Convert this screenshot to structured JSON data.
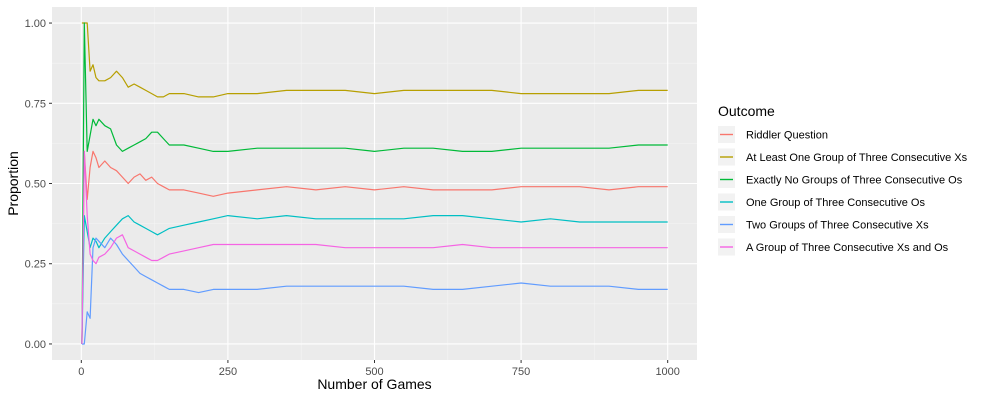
{
  "chart_data": {
    "type": "line",
    "xlabel": "Number of Games",
    "ylabel": "Proportion",
    "xlim": [
      0,
      1000
    ],
    "ylim": [
      0,
      1
    ],
    "xticks": [
      0,
      250,
      500,
      750,
      1000
    ],
    "xtick_labels": [
      "0",
      "250",
      "500",
      "750",
      "1000"
    ],
    "yticks": [
      0,
      0.25,
      0.5,
      0.75,
      1
    ],
    "ytick_labels": [
      "0.00",
      "0.25",
      "0.50",
      "0.75",
      "1.00"
    ],
    "grid": true,
    "legend_title": "Outcome",
    "legend_position": "right",
    "series": [
      {
        "name": "Riddler Question",
        "color": "#F8766D",
        "x": [
          1,
          5,
          10,
          15,
          20,
          25,
          30,
          40,
          50,
          60,
          70,
          80,
          90,
          100,
          110,
          120,
          130,
          140,
          150,
          175,
          200,
          225,
          250,
          300,
          350,
          400,
          450,
          500,
          550,
          600,
          650,
          700,
          750,
          800,
          850,
          900,
          950,
          1000
        ],
        "y": [
          0.0,
          0.6,
          0.45,
          0.55,
          0.6,
          0.58,
          0.55,
          0.57,
          0.55,
          0.54,
          0.52,
          0.5,
          0.52,
          0.53,
          0.51,
          0.52,
          0.5,
          0.49,
          0.48,
          0.48,
          0.47,
          0.46,
          0.47,
          0.48,
          0.49,
          0.48,
          0.49,
          0.48,
          0.49,
          0.48,
          0.48,
          0.48,
          0.49,
          0.49,
          0.49,
          0.48,
          0.49,
          0.49
        ]
      },
      {
        "name": "At Least One Group of Three Consecutive Xs",
        "color": "#B79F00",
        "x": [
          1,
          5,
          10,
          15,
          20,
          25,
          30,
          40,
          50,
          60,
          70,
          80,
          90,
          100,
          110,
          120,
          130,
          140,
          150,
          175,
          200,
          225,
          250,
          300,
          350,
          400,
          450,
          500,
          550,
          600,
          650,
          700,
          750,
          800,
          850,
          900,
          950,
          1000
        ],
        "y": [
          1.0,
          1.0,
          1.0,
          0.85,
          0.87,
          0.83,
          0.82,
          0.82,
          0.83,
          0.85,
          0.83,
          0.8,
          0.81,
          0.8,
          0.79,
          0.78,
          0.77,
          0.77,
          0.78,
          0.78,
          0.77,
          0.77,
          0.78,
          0.78,
          0.79,
          0.79,
          0.79,
          0.78,
          0.79,
          0.79,
          0.79,
          0.79,
          0.78,
          0.78,
          0.78,
          0.78,
          0.79,
          0.79
        ]
      },
      {
        "name": "Exactly No Groups of Three Consecutive Os",
        "color": "#00BA38",
        "x": [
          1,
          5,
          10,
          15,
          20,
          25,
          30,
          40,
          50,
          60,
          70,
          80,
          90,
          100,
          110,
          120,
          130,
          140,
          150,
          175,
          200,
          225,
          250,
          300,
          350,
          400,
          450,
          500,
          550,
          600,
          650,
          700,
          750,
          800,
          850,
          900,
          950,
          1000
        ],
        "y": [
          0.0,
          1.0,
          0.6,
          0.65,
          0.7,
          0.68,
          0.7,
          0.68,
          0.67,
          0.62,
          0.6,
          0.61,
          0.62,
          0.63,
          0.64,
          0.66,
          0.66,
          0.64,
          0.62,
          0.62,
          0.61,
          0.6,
          0.6,
          0.61,
          0.61,
          0.61,
          0.61,
          0.6,
          0.61,
          0.61,
          0.6,
          0.6,
          0.61,
          0.61,
          0.61,
          0.61,
          0.62,
          0.62
        ]
      },
      {
        "name": "One Group of Three Consecutive Os",
        "color": "#00BFC4",
        "x": [
          1,
          5,
          10,
          15,
          20,
          25,
          30,
          40,
          50,
          60,
          70,
          80,
          90,
          100,
          110,
          120,
          130,
          140,
          150,
          175,
          200,
          225,
          250,
          300,
          350,
          400,
          450,
          500,
          550,
          600,
          650,
          700,
          750,
          800,
          850,
          900,
          950,
          1000
        ],
        "y": [
          0.0,
          0.4,
          0.35,
          0.3,
          0.33,
          0.32,
          0.3,
          0.33,
          0.35,
          0.37,
          0.39,
          0.4,
          0.38,
          0.37,
          0.36,
          0.35,
          0.34,
          0.35,
          0.36,
          0.37,
          0.38,
          0.39,
          0.4,
          0.39,
          0.4,
          0.39,
          0.39,
          0.39,
          0.39,
          0.4,
          0.4,
          0.39,
          0.38,
          0.39,
          0.38,
          0.38,
          0.38,
          0.38
        ]
      },
      {
        "name": "Two Groups of Three Consecutive Xs",
        "color": "#619CFF",
        "x": [
          1,
          5,
          10,
          15,
          20,
          25,
          30,
          40,
          50,
          60,
          70,
          80,
          90,
          100,
          110,
          120,
          130,
          140,
          150,
          175,
          200,
          225,
          250,
          300,
          350,
          400,
          450,
          500,
          550,
          600,
          650,
          700,
          750,
          800,
          850,
          900,
          950,
          1000
        ],
        "y": [
          0.0,
          0.0,
          0.1,
          0.08,
          0.3,
          0.33,
          0.32,
          0.3,
          0.33,
          0.31,
          0.28,
          0.26,
          0.24,
          0.22,
          0.21,
          0.2,
          0.19,
          0.18,
          0.17,
          0.17,
          0.16,
          0.17,
          0.17,
          0.17,
          0.18,
          0.18,
          0.18,
          0.18,
          0.18,
          0.17,
          0.17,
          0.18,
          0.19,
          0.18,
          0.18,
          0.18,
          0.17,
          0.17
        ]
      },
      {
        "name": "A Group of Three Consecutive Xs and Os",
        "color": "#F564E3",
        "x": [
          1,
          5,
          10,
          15,
          20,
          25,
          30,
          40,
          50,
          60,
          70,
          80,
          90,
          100,
          110,
          120,
          130,
          140,
          150,
          175,
          200,
          225,
          250,
          300,
          350,
          400,
          450,
          500,
          550,
          600,
          650,
          700,
          750,
          800,
          850,
          900,
          950,
          1000
        ],
        "y": [
          0.0,
          0.6,
          0.4,
          0.28,
          0.26,
          0.25,
          0.27,
          0.28,
          0.3,
          0.33,
          0.34,
          0.3,
          0.29,
          0.28,
          0.27,
          0.26,
          0.26,
          0.27,
          0.28,
          0.29,
          0.3,
          0.31,
          0.31,
          0.31,
          0.31,
          0.31,
          0.3,
          0.3,
          0.3,
          0.3,
          0.31,
          0.3,
          0.3,
          0.3,
          0.3,
          0.3,
          0.3,
          0.3
        ]
      }
    ]
  }
}
